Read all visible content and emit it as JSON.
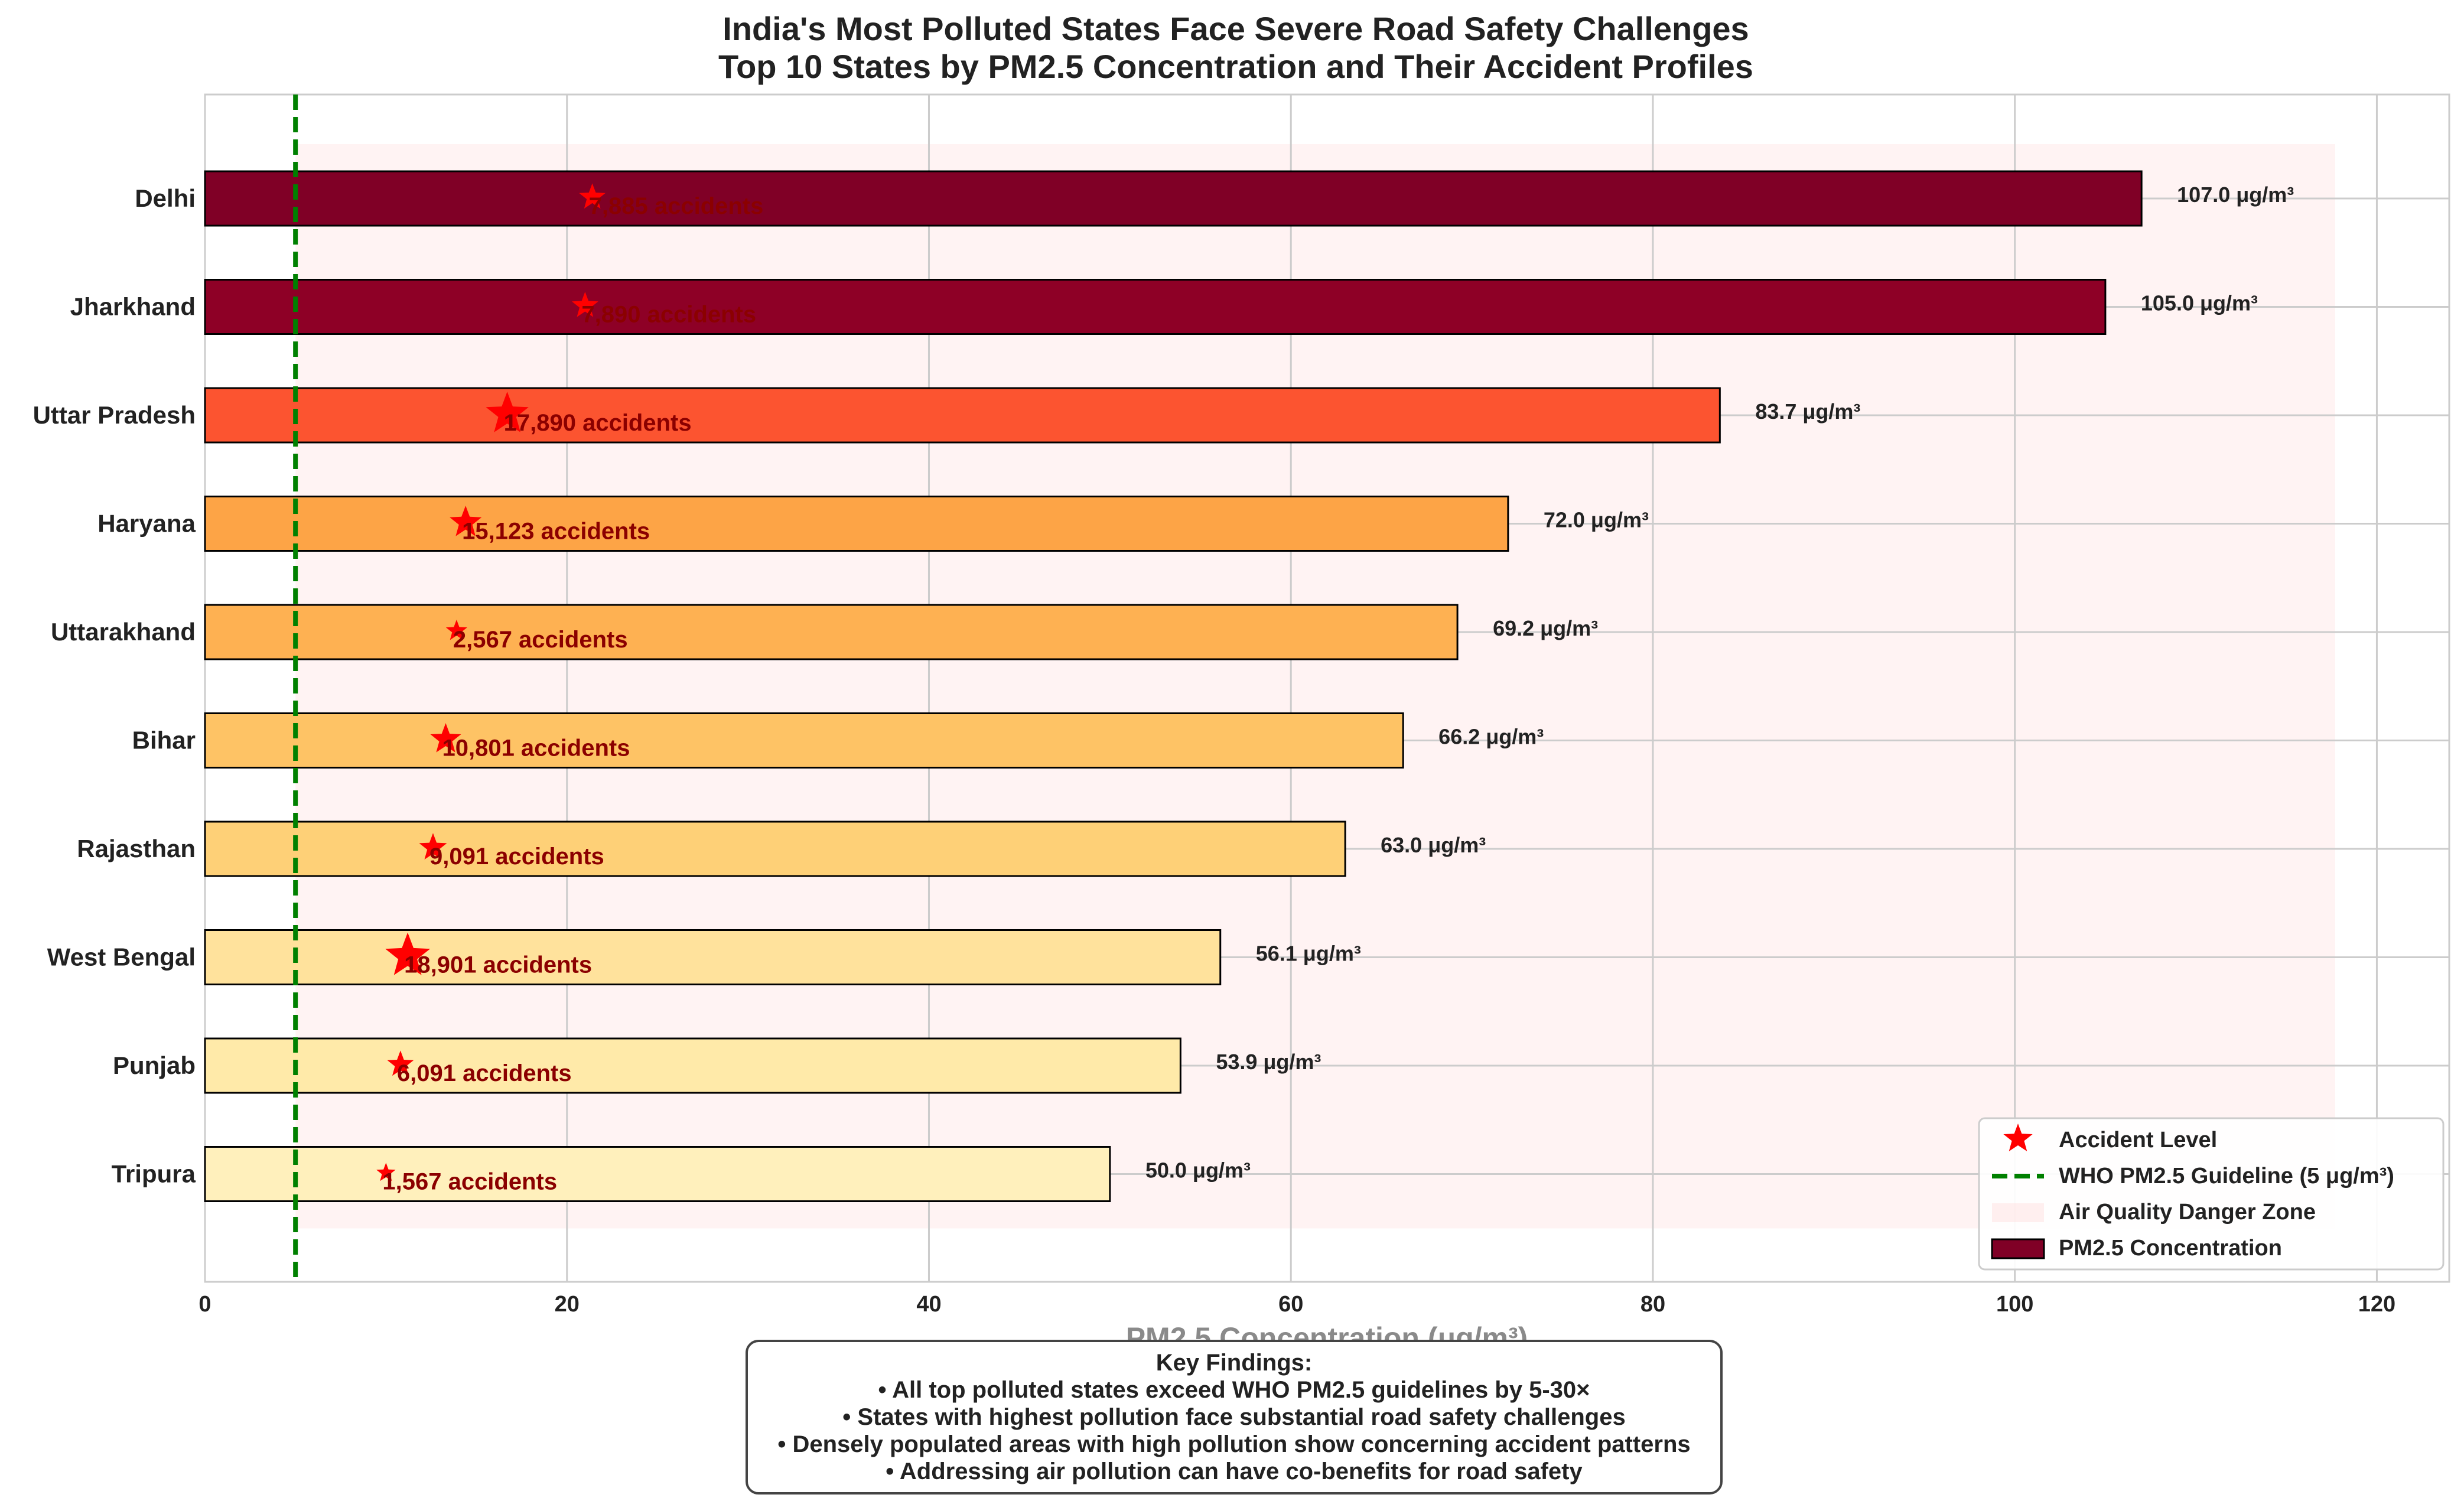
{
  "chart_data": {
    "type": "bar",
    "orientation": "horizontal",
    "title": "India's Most Polluted States Face Severe Road Safety Challenges",
    "subtitle": "Top 10 States by PM2.5 Concentration and Their Accident Profiles",
    "xlabel": "PM2.5 Concentration (μg/m³)",
    "xlim": [
      0,
      124
    ],
    "xticks": [
      0,
      20,
      40,
      60,
      80,
      100,
      120
    ],
    "grid": true,
    "categories": [
      "Delhi",
      "Jharkhand",
      "Uttar Pradesh",
      "Haryana",
      "Uttarakhand",
      "Bihar",
      "Rajasthan",
      "West Bengal",
      "Punjab",
      "Tripura"
    ],
    "series": [
      {
        "name": "PM2.5 Concentration",
        "values": [
          107.0,
          105.0,
          83.7,
          72.0,
          69.2,
          66.2,
          63.0,
          56.1,
          53.9,
          50.0
        ],
        "value_labels": [
          "107.0 μg/m³",
          "105.0 μg/m³",
          "83.7 μg/m³",
          "72.0 μg/m³",
          "69.2 μg/m³",
          "66.2 μg/m³",
          "63.0 μg/m³",
          "56.1 μg/m³",
          "53.9 μg/m³",
          "50.0 μg/m³"
        ],
        "colors": [
          "#800026",
          "#8e0026",
          "#fc5430",
          "#fda446",
          "#feb152",
          "#fec365",
          "#fed077",
          "#ffe29c",
          "#ffeaa9",
          "#fff0bc"
        ]
      },
      {
        "name": "Accident Level",
        "marker": "star",
        "color": "#ff0000",
        "x_positions": [
          21.4,
          21.0,
          16.7,
          14.4,
          13.9,
          13.3,
          12.6,
          11.2,
          10.8,
          10.0
        ],
        "marker_scale": [
          0.62,
          0.62,
          1.0,
          0.75,
          0.5,
          0.72,
          0.65,
          1.05,
          0.62,
          0.45
        ],
        "labels": [
          "7,885 accidents",
          "7,890 accidents",
          "17,890 accidents",
          "15,123 accidents",
          "2,567 accidents",
          "10,801 accidents",
          "9,091 accidents",
          "18,901 accidents",
          "6,091 accidents",
          "1,567 accidents"
        ]
      }
    ],
    "reference_line": {
      "name": "WHO PM2.5 Guideline (5 μg/m³)",
      "x": 5,
      "color": "#008000",
      "style": "dashed"
    },
    "danger_zone": {
      "name": "Air Quality Danger Zone",
      "x_range": [
        5,
        117.7
      ],
      "color": "#ffe4e4"
    },
    "legend": {
      "position": "bottom-right",
      "entries": [
        "Accident Level",
        "WHO PM2.5 Guideline (5 μg/m³)",
        "Air Quality Danger Zone",
        "PM2.5 Concentration"
      ]
    }
  },
  "key_findings": {
    "heading": "Key Findings:",
    "items": [
      "• All top polluted states exceed WHO PM2.5 guidelines by 5-30×",
      "• States with highest pollution face substantial road safety challenges",
      "• Densely populated areas with high pollution show concerning accident patterns",
      "• Addressing air pollution can have co-benefits for road safety"
    ]
  }
}
